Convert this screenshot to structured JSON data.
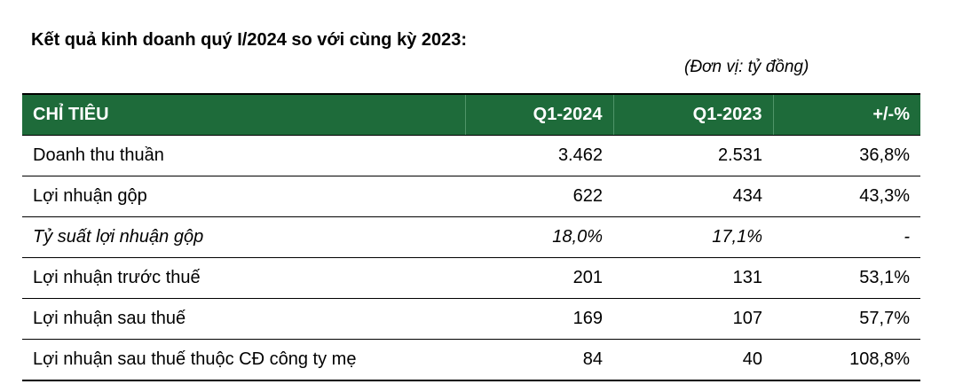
{
  "title": "Kết quả kinh doanh quý I/2024 so với cùng kỳ 2023:",
  "unit": "(Đơn vị: tỷ đồng)",
  "table": {
    "headers": [
      "CHỈ TIÊU",
      "Q1-2024",
      "Q1-2023",
      "+/-%"
    ],
    "header_color": "#1e6b3a",
    "rows": [
      {
        "label": "Doanh thu thuần",
        "q1_2024": "3.462",
        "q1_2023": "2.531",
        "change": "36,8%"
      },
      {
        "label": "Lợi nhuận gộp",
        "q1_2024": "622",
        "q1_2023": "434",
        "change": "43,3%"
      },
      {
        "label": "Tỷ suất lợi nhuận gộp",
        "q1_2024": "18,0%",
        "q1_2023": "17,1%",
        "change": "-"
      },
      {
        "label": "Lợi nhuận trước thuế",
        "q1_2024": "201",
        "q1_2023": "131",
        "change": "53,1%"
      },
      {
        "label": "Lợi nhuận sau thuế",
        "q1_2024": "169",
        "q1_2023": "107",
        "change": "57,7%"
      },
      {
        "label": "Lợi nhuận sau thuế thuộc CĐ công ty mẹ",
        "q1_2024": "84",
        "q1_2023": "40",
        "change": "108,8%"
      }
    ]
  }
}
